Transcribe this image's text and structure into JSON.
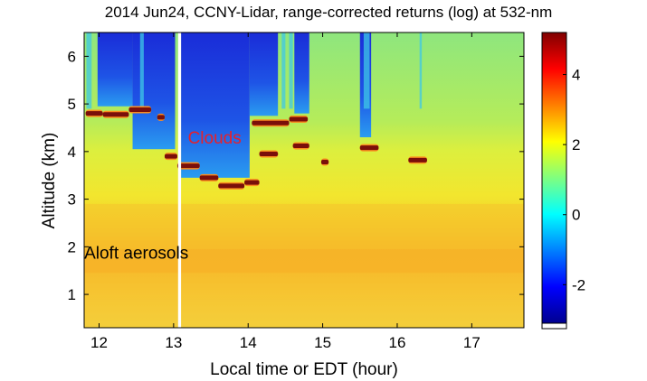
{
  "chart_data": {
    "type": "heatmap",
    "title": "2014 Jun24, CCNY-Lidar, range-corrected returns (log) at 532-nm",
    "xlabel": "Local time or EDT (hour)",
    "ylabel": "Altitude (km)",
    "xlim": [
      11.8,
      17.7
    ],
    "ylim": [
      0.3,
      6.5
    ],
    "x_ticks": [
      "12",
      "13",
      "14",
      "15",
      "16",
      "17"
    ],
    "y_ticks": [
      "1",
      "2",
      "3",
      "4",
      "5",
      "6"
    ],
    "colorbar": {
      "range": [
        -3.1,
        5.2
      ],
      "ticks": [
        "-2",
        "0",
        "2",
        "4"
      ],
      "colormap": "jet"
    },
    "annotations": [
      {
        "text": "Clouds",
        "x": 13.55,
        "y": 4.3,
        "color": "#e8202a"
      },
      {
        "text": "Aloft aerosols",
        "x": 12.5,
        "y": 1.88,
        "color": "#000000"
      }
    ],
    "cloud_layers": [
      {
        "t0": 11.82,
        "t1": 12.05,
        "alt": 4.8
      },
      {
        "t0": 12.05,
        "t1": 12.4,
        "alt": 4.78
      },
      {
        "t0": 12.4,
        "t1": 12.7,
        "alt": 4.88
      },
      {
        "t0": 12.78,
        "t1": 12.88,
        "alt": 4.72
      },
      {
        "t0": 12.88,
        "t1": 13.05,
        "alt": 3.9
      },
      {
        "t0": 13.05,
        "t1": 13.35,
        "alt": 3.7
      },
      {
        "t0": 13.35,
        "t1": 13.6,
        "alt": 3.45
      },
      {
        "t0": 13.6,
        "t1": 13.95,
        "alt": 3.28
      },
      {
        "t0": 13.95,
        "t1": 14.15,
        "alt": 3.35
      },
      {
        "t0": 14.15,
        "t1": 14.4,
        "alt": 3.95
      },
      {
        "t0": 14.05,
        "t1": 14.55,
        "alt": 4.6
      },
      {
        "t0": 14.55,
        "t1": 14.8,
        "alt": 4.68
      },
      {
        "t0": 14.6,
        "t1": 14.82,
        "alt": 4.12
      },
      {
        "t0": 14.98,
        "t1": 15.08,
        "alt": 3.78
      },
      {
        "t0": 15.5,
        "t1": 15.75,
        "alt": 4.08
      },
      {
        "t0": 16.15,
        "t1": 16.4,
        "alt": 3.82
      }
    ],
    "clear_sky_gaps": [
      {
        "t0": 11.98,
        "t1": 12.45,
        "alt_min": 4.95
      },
      {
        "t0": 12.45,
        "t1": 13.02,
        "alt_min": 4.05
      },
      {
        "t0": 13.1,
        "t1": 14.02,
        "alt_min": 3.45
      },
      {
        "t0": 14.02,
        "t1": 14.4,
        "alt_min": 4.75
      },
      {
        "t0": 14.62,
        "t1": 14.82,
        "alt_min": 4.8
      },
      {
        "t0": 15.5,
        "t1": 15.65,
        "alt_min": 4.3
      }
    ],
    "aerosol_layer": {
      "alt_top": 2.9,
      "alt_peak": 1.7
    }
  }
}
